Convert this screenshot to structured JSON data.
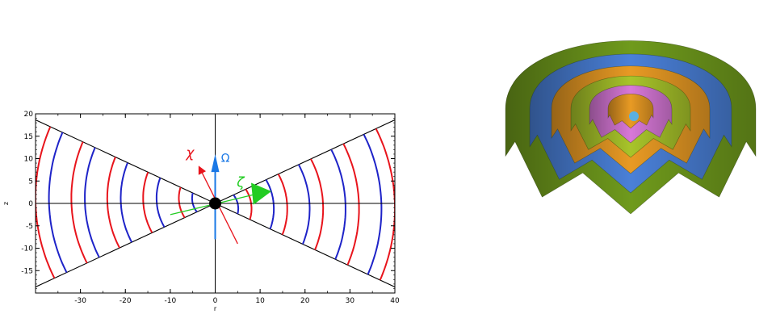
{
  "chart_data": {
    "type": "line",
    "xlabel": "r",
    "ylabel": "z",
    "xlim": [
      -40,
      40
    ],
    "ylim": [
      -20,
      20
    ],
    "x_ticks": [
      "-30",
      "-20",
      "-10",
      "0",
      "10",
      "20",
      "30",
      "40"
    ],
    "y_ticks": [
      "20",
      "15",
      "10",
      "5",
      "0",
      "-5",
      "-10",
      "-15"
    ],
    "cone_half_angle_deg": 25,
    "annotations": {
      "chi": "χ",
      "omega": "Ω",
      "zeta": "ζ"
    },
    "colors": {
      "red": "#e8141c",
      "blue": "#1e23c8",
      "omega_arrow": "#1a78e6",
      "zeta_arrow": "#22cc22",
      "axis": "#000000"
    }
  },
  "shells_3d": {
    "colors": [
      "#6f9a1c",
      "#4a80d8",
      "#e89a24",
      "#a8c42a",
      "#d878d8",
      "#e89a24"
    ]
  }
}
